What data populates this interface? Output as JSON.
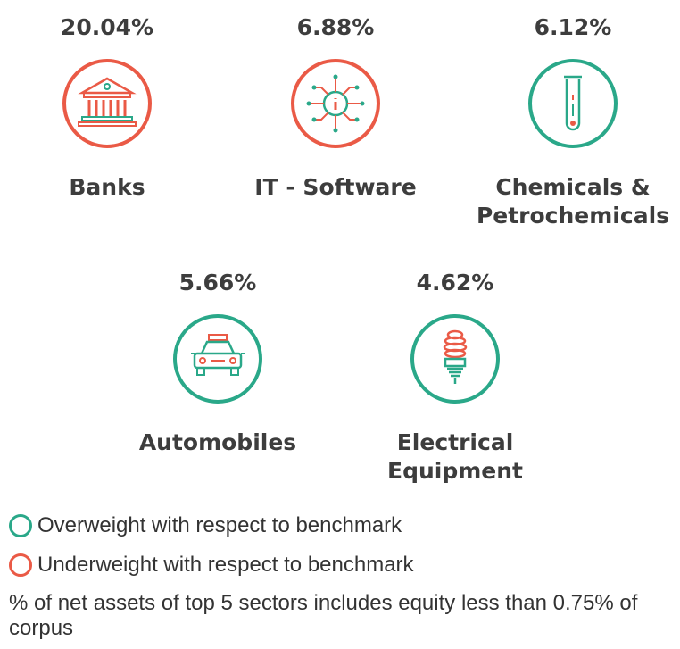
{
  "chart_data": {
    "type": "table",
    "unit": "% of net assets",
    "categories": [
      "Banks",
      "IT - Software",
      "Chemicals &\nPetrochemicals",
      "Automobiles",
      "Electrical\nEquipment"
    ],
    "values": [
      20.04,
      6.88,
      6.12,
      5.66,
      4.62
    ],
    "value_labels": [
      "20.04%",
      "6.88%",
      "6.12%",
      "5.66%",
      "4.62%"
    ],
    "weighting": [
      "underweight",
      "underweight",
      "overweight",
      "overweight",
      "overweight"
    ],
    "icons": [
      "bank-icon",
      "chip-icon",
      "test-tube-icon",
      "car-icon",
      "bulb-icon"
    ]
  },
  "colors": {
    "overweight": "#2aa889",
    "underweight": "#ea5a46",
    "text": "#3d3d3d"
  },
  "legend": {
    "overweight": "Overweight with respect to benchmark",
    "underweight": "Underweight with respect to benchmark"
  },
  "note": "% of net assets of top 5 sectors includes equity less than 0.75% of corpus"
}
